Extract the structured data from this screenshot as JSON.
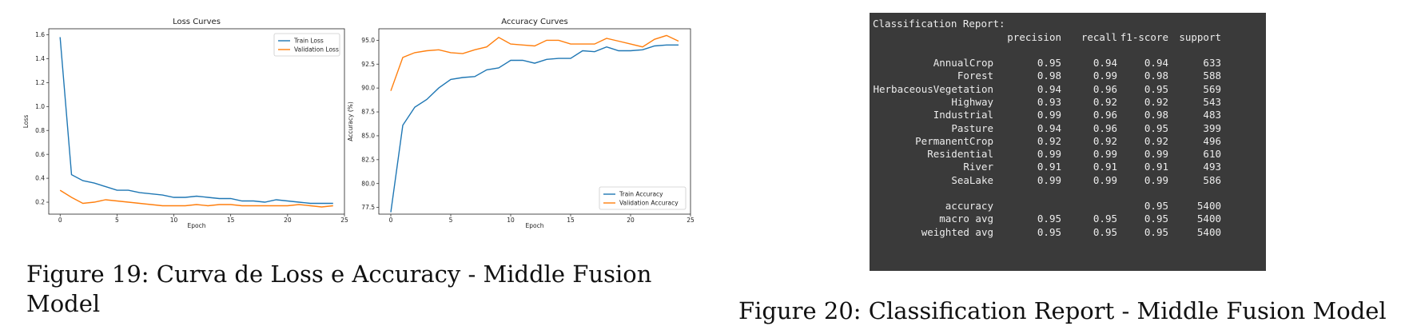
{
  "chart_data": [
    {
      "type": "line",
      "title": "Loss Curves",
      "xlabel": "Epoch",
      "ylabel": "Loss",
      "xlim": [
        -1,
        25
      ],
      "ylim": [
        0.1,
        1.65
      ],
      "x_ticks": [
        0,
        5,
        10,
        15,
        20,
        25
      ],
      "y_ticks": [
        0.2,
        0.4,
        0.6,
        0.8,
        1.0,
        1.2,
        1.4,
        1.6
      ],
      "legend": "top-right",
      "x": [
        0,
        1,
        2,
        3,
        4,
        5,
        6,
        7,
        8,
        9,
        10,
        11,
        12,
        13,
        14,
        15,
        16,
        17,
        18,
        19,
        20,
        21,
        22,
        23,
        24
      ],
      "series": [
        {
          "name": "Train Loss",
          "color": "#1f77b4",
          "values": [
            1.58,
            0.43,
            0.38,
            0.36,
            0.33,
            0.3,
            0.3,
            0.28,
            0.27,
            0.26,
            0.24,
            0.24,
            0.25,
            0.24,
            0.23,
            0.23,
            0.21,
            0.21,
            0.2,
            0.22,
            0.21,
            0.2,
            0.19,
            0.19,
            0.19
          ]
        },
        {
          "name": "Validation Loss",
          "color": "#ff7f0e",
          "values": [
            0.3,
            0.24,
            0.19,
            0.2,
            0.22,
            0.21,
            0.2,
            0.19,
            0.18,
            0.17,
            0.17,
            0.17,
            0.18,
            0.17,
            0.18,
            0.18,
            0.17,
            0.17,
            0.17,
            0.17,
            0.17,
            0.18,
            0.17,
            0.16,
            0.17
          ]
        }
      ]
    },
    {
      "type": "line",
      "title": "Accuracy Curves",
      "xlabel": "Epoch",
      "ylabel": "Accuracy (%)",
      "xlim": [
        -1,
        25
      ],
      "ylim": [
        76.8,
        96.2
      ],
      "x_ticks": [
        0,
        5,
        10,
        15,
        20,
        25
      ],
      "y_ticks": [
        77.5,
        80.0,
        82.5,
        85.0,
        87.5,
        90.0,
        92.5,
        95.0
      ],
      "legend": "bottom-right",
      "x": [
        0,
        1,
        2,
        3,
        4,
        5,
        6,
        7,
        8,
        9,
        10,
        11,
        12,
        13,
        14,
        15,
        16,
        17,
        18,
        19,
        20,
        21,
        22,
        23,
        24
      ],
      "series": [
        {
          "name": "Train Accuracy",
          "color": "#1f77b4",
          "values": [
            77.0,
            86.1,
            88.0,
            88.8,
            90.0,
            90.9,
            91.1,
            91.2,
            91.9,
            92.1,
            92.9,
            92.9,
            92.6,
            93.0,
            93.1,
            93.1,
            93.9,
            93.8,
            94.3,
            93.9,
            93.9,
            94.0,
            94.4,
            94.5,
            94.5
          ]
        },
        {
          "name": "Validation Accuracy",
          "color": "#ff7f0e",
          "values": [
            89.7,
            93.2,
            93.7,
            93.9,
            94.0,
            93.7,
            93.6,
            94.0,
            94.3,
            95.3,
            94.6,
            94.5,
            94.4,
            95.0,
            95.0,
            94.6,
            94.6,
            94.6,
            95.2,
            94.9,
            94.6,
            94.3,
            95.1,
            95.5,
            94.9
          ]
        }
      ]
    },
    {
      "type": "table",
      "title": "Classification Report:",
      "columns": [
        "precision",
        "recall",
        "f1-score",
        "support"
      ],
      "rows": [
        {
          "label": "AnnualCrop",
          "precision": "0.95",
          "recall": "0.94",
          "f1": "0.94",
          "support": "633"
        },
        {
          "label": "Forest",
          "precision": "0.98",
          "recall": "0.99",
          "f1": "0.98",
          "support": "588"
        },
        {
          "label": "HerbaceousVegetation",
          "precision": "0.94",
          "recall": "0.96",
          "f1": "0.95",
          "support": "569"
        },
        {
          "label": "Highway",
          "precision": "0.93",
          "recall": "0.92",
          "f1": "0.92",
          "support": "543"
        },
        {
          "label": "Industrial",
          "precision": "0.99",
          "recall": "0.96",
          "f1": "0.98",
          "support": "483"
        },
        {
          "label": "Pasture",
          "precision": "0.94",
          "recall": "0.96",
          "f1": "0.95",
          "support": "399"
        },
        {
          "label": "PermanentCrop",
          "precision": "0.92",
          "recall": "0.92",
          "f1": "0.92",
          "support": "496"
        },
        {
          "label": "Residential",
          "precision": "0.99",
          "recall": "0.99",
          "f1": "0.99",
          "support": "610"
        },
        {
          "label": "River",
          "precision": "0.91",
          "recall": "0.91",
          "f1": "0.91",
          "support": "493"
        },
        {
          "label": "SeaLake",
          "precision": "0.99",
          "recall": "0.99",
          "f1": "0.99",
          "support": "586"
        }
      ],
      "summary": [
        {
          "label": "accuracy",
          "precision": "",
          "recall": "",
          "f1": "0.95",
          "support": "5400"
        },
        {
          "label": "macro avg",
          "precision": "0.95",
          "recall": "0.95",
          "f1": "0.95",
          "support": "5400"
        },
        {
          "label": "weighted avg",
          "precision": "0.95",
          "recall": "0.95",
          "f1": "0.95",
          "support": "5400"
        }
      ]
    }
  ],
  "captions": {
    "fig19": "Figure 19: Curva de Loss e Accuracy - Middle Fusion Model",
    "fig20": "Figure 20: Classification Report - Middle Fusion Model"
  }
}
